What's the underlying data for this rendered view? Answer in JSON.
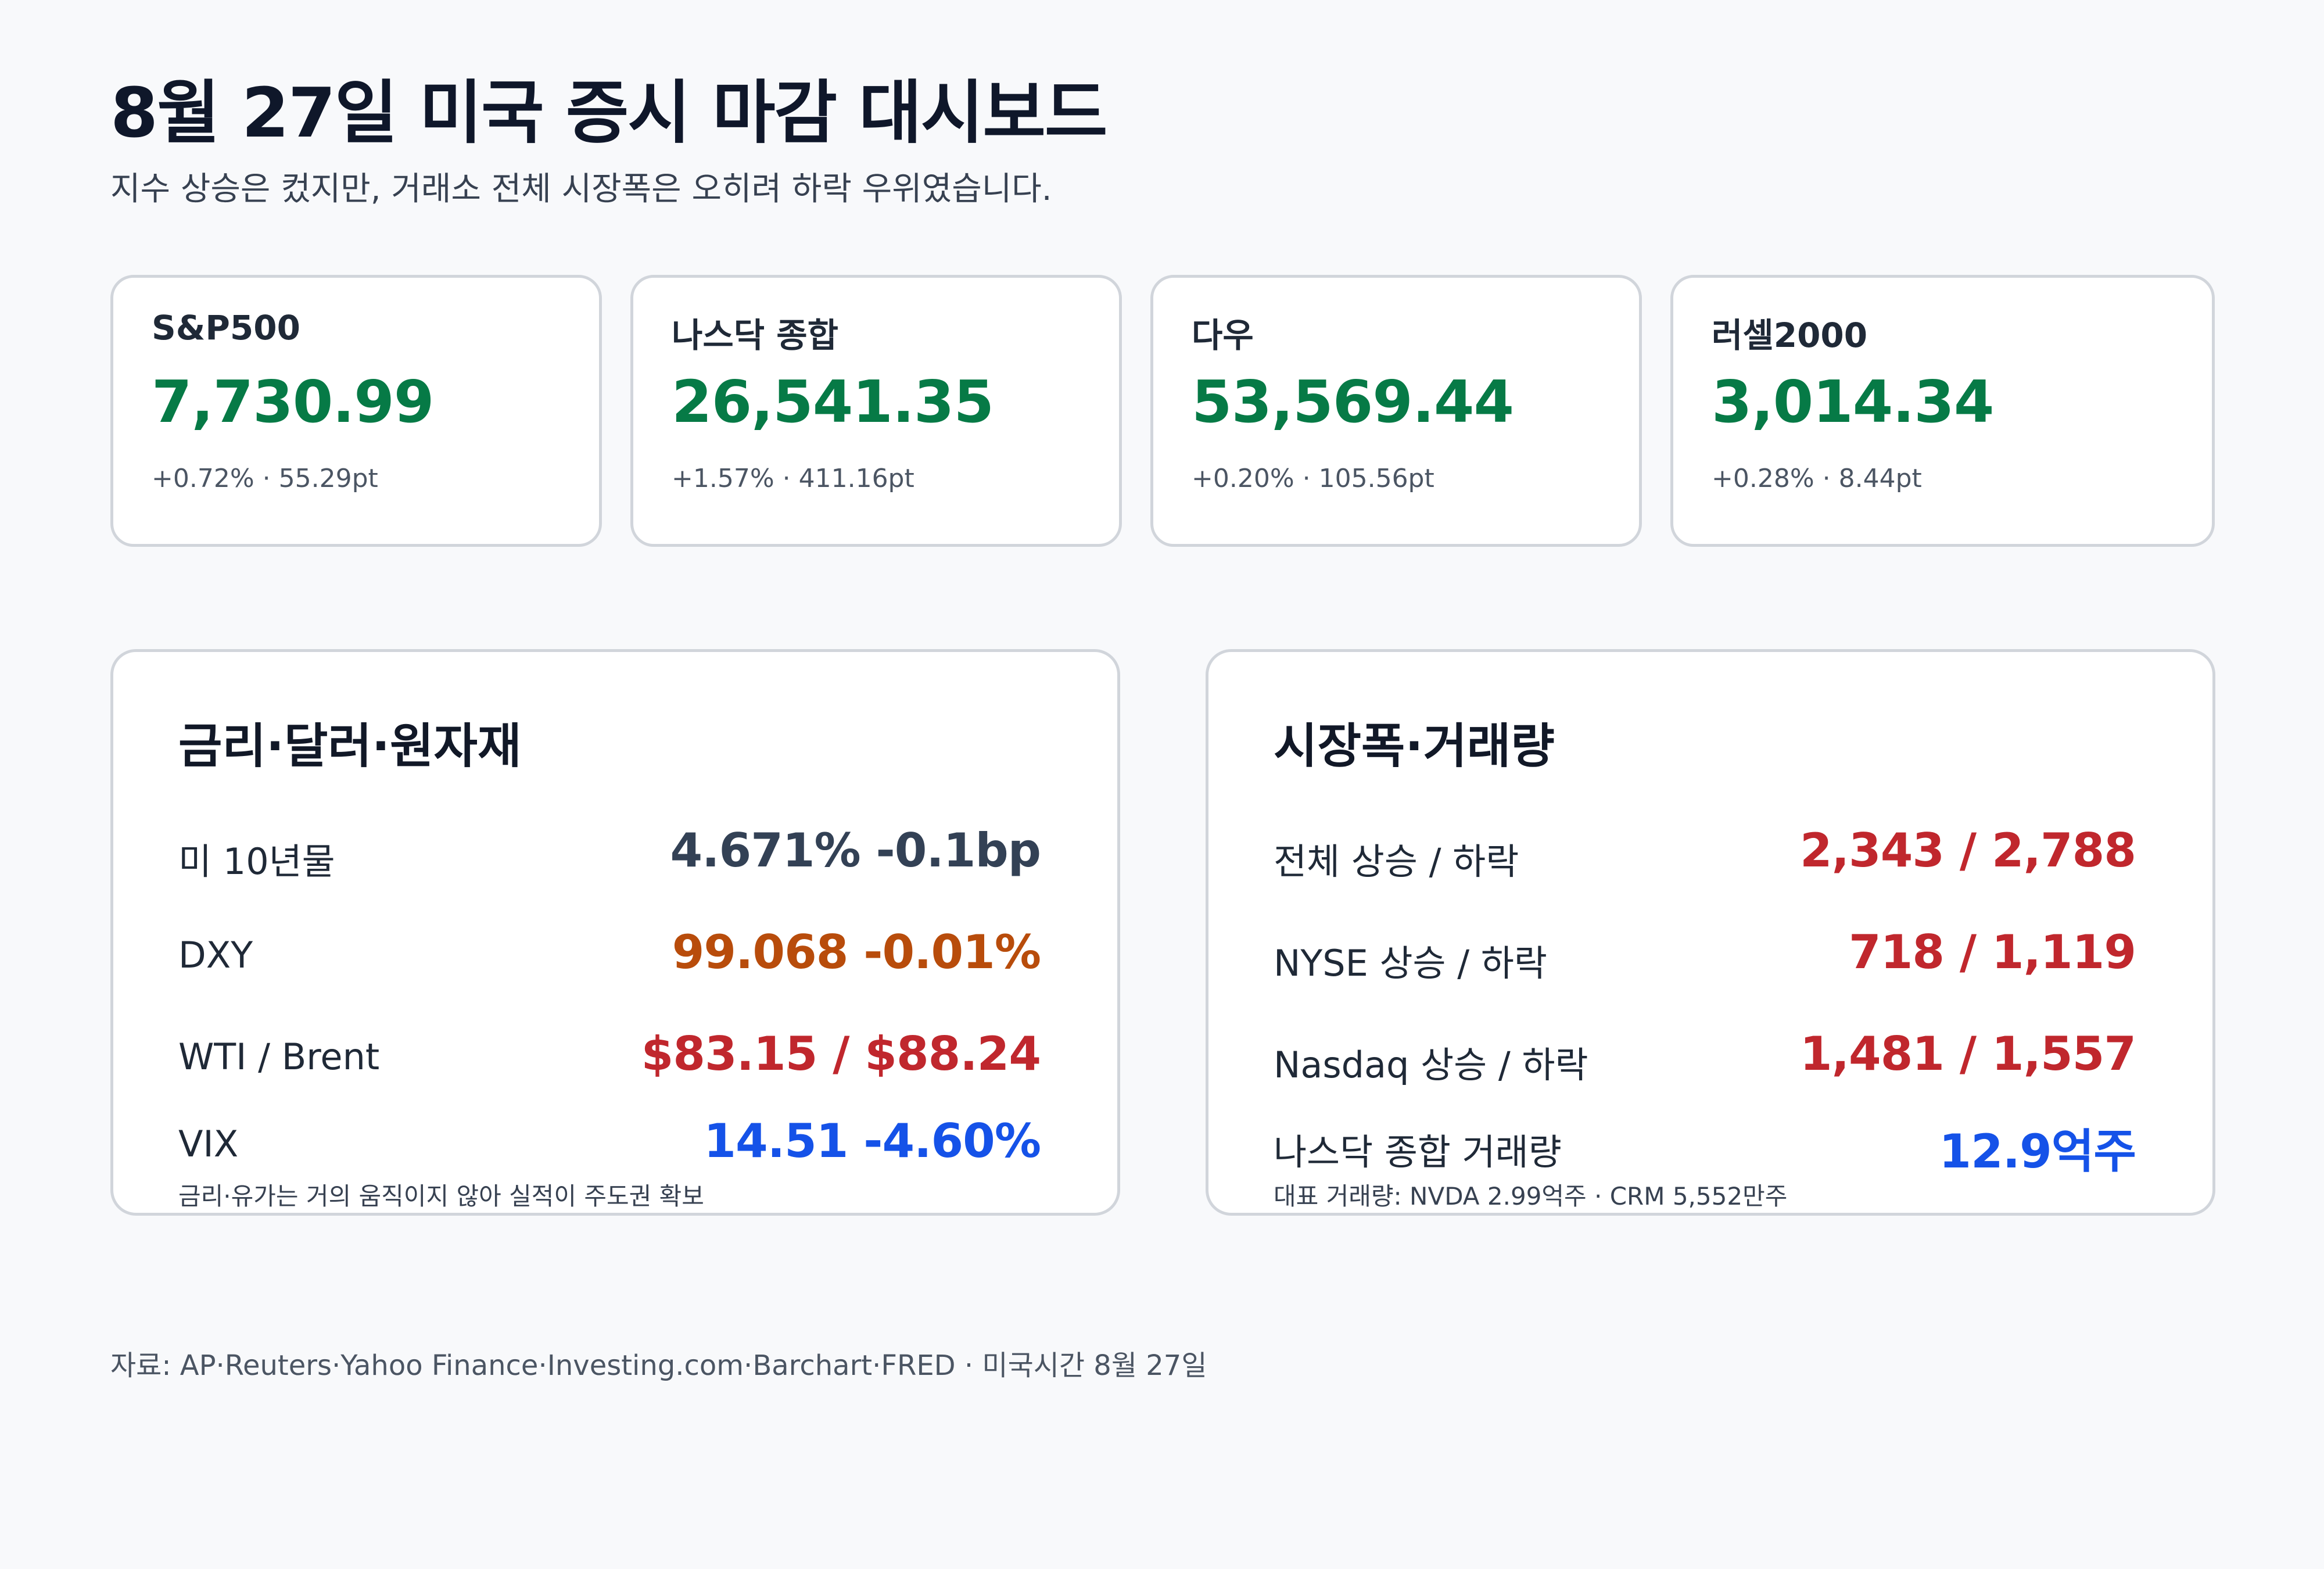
{
  "header": {
    "title": "8월 27일 미국 증시 마감 대시보드",
    "subtitle": "지수 상승은 컸지만, 거래소 전체 시장폭은 오히려 하락 우위였습니다."
  },
  "indices": [
    {
      "name": "S&P500",
      "value": "7,730.99",
      "change": "+0.72% · 55.29pt"
    },
    {
      "name": "나스닥 종합",
      "value": "26,541.35",
      "change": "+1.57% · 411.16pt"
    },
    {
      "name": "다우",
      "value": "53,569.44",
      "change": "+0.20% · 105.56pt"
    },
    {
      "name": "러셀2000",
      "value": "3,014.34",
      "change": "+0.28% · 8.44pt"
    }
  ],
  "macro_panel": {
    "title": "금리·달러·원자재",
    "rows": [
      {
        "label": "미 10년물",
        "value": "4.671% -0.1bp"
      },
      {
        "label": "DXY",
        "value": "99.068 -0.01%"
      },
      {
        "label": "WTI / Brent",
        "value": "$83.15 / $88.24"
      },
      {
        "label": "VIX",
        "value": "14.51 -4.60%"
      }
    ],
    "note": "금리·유가는 거의 움직이지 않아 실적이 주도권 확보"
  },
  "breadth_panel": {
    "title": "시장폭·거래량",
    "rows": [
      {
        "label": "전체 상승 / 하락",
        "value": "2,343 / 2,788"
      },
      {
        "label": "NYSE 상승 / 하락",
        "value": "718 / 1,119"
      },
      {
        "label": "Nasdaq 상승 / 하락",
        "value": "1,481 / 1,557"
      },
      {
        "label": "나스닥 종합 거래량",
        "value": "12.9억주"
      }
    ],
    "note": "대표 거래량: NVDA 2.99억주 · CRM 5,552만주"
  },
  "footer": {
    "source": "자료: AP·Reuters·Yahoo Finance·Investing.com·Barchart·FRED · 미국시간 8월 27일"
  },
  "colors": {
    "up_green": "#067a46",
    "neutral_dark": "#334155",
    "orange": "#b84c0b",
    "red": "#c0272d",
    "blue": "#1552e8"
  }
}
